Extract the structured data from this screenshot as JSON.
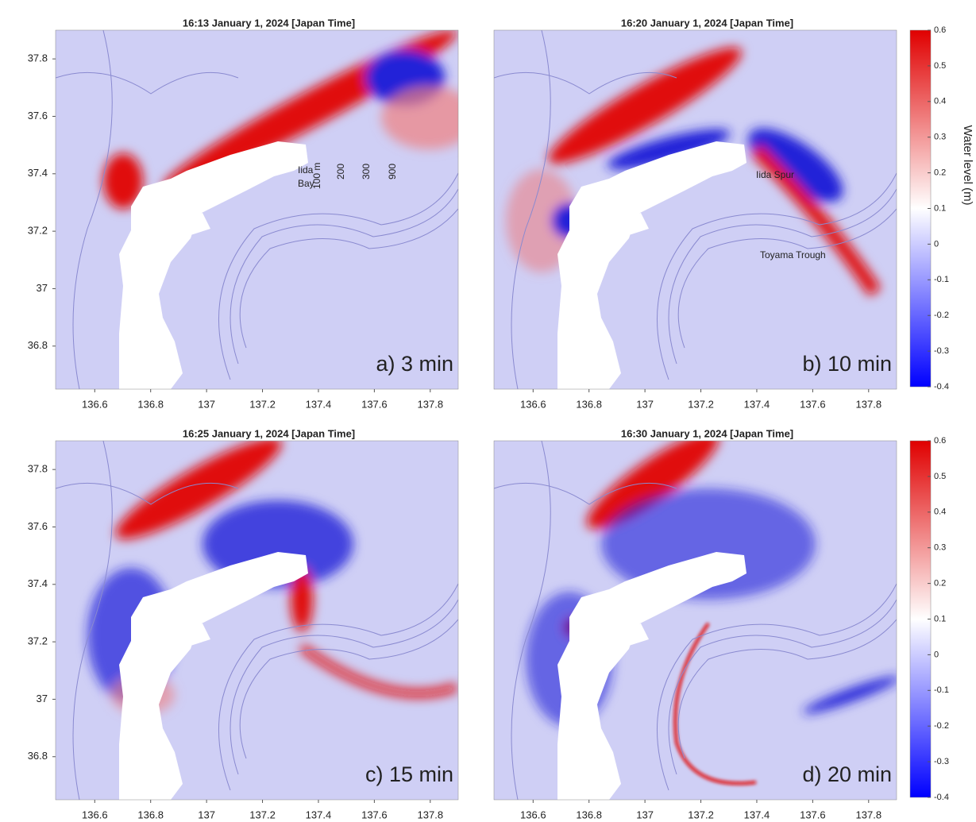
{
  "panels": [
    {
      "title": "16:13  January 1, 2024 [Japan Time]",
      "label": "a) 3 min",
      "annotations": [
        "Iida",
        "Bay",
        "100 m",
        "200",
        "300",
        "900"
      ]
    },
    {
      "title": "16:20  January 1, 2024 [Japan Time]",
      "label": "b) 10 min",
      "annotations": [
        "Iida Spur",
        "Toyama Trough"
      ]
    },
    {
      "title": "16:25  January 1, 2024 [Japan Time]",
      "label": "c) 15 min",
      "annotations": []
    },
    {
      "title": "16:30  January 1, 2024 [Japan Time]",
      "label": "d) 20 min",
      "annotations": []
    }
  ],
  "axes": {
    "xlim": [
      136.46,
      137.9
    ],
    "ylim": [
      36.65,
      37.9
    ],
    "xticks": [
      136.6,
      136.8,
      137,
      137.2,
      137.4,
      137.6,
      137.8
    ],
    "yticks": [
      37.8,
      37.6,
      37.4,
      37.2,
      37,
      36.8
    ]
  },
  "colorbar": {
    "label": "Water level (m)",
    "lim": [
      -0.4,
      0.6
    ],
    "ticks": [
      0.6,
      0.5,
      0.4,
      0.3,
      0.2,
      0.1,
      0,
      -0.1,
      -0.2,
      -0.3,
      -0.4
    ]
  }
}
